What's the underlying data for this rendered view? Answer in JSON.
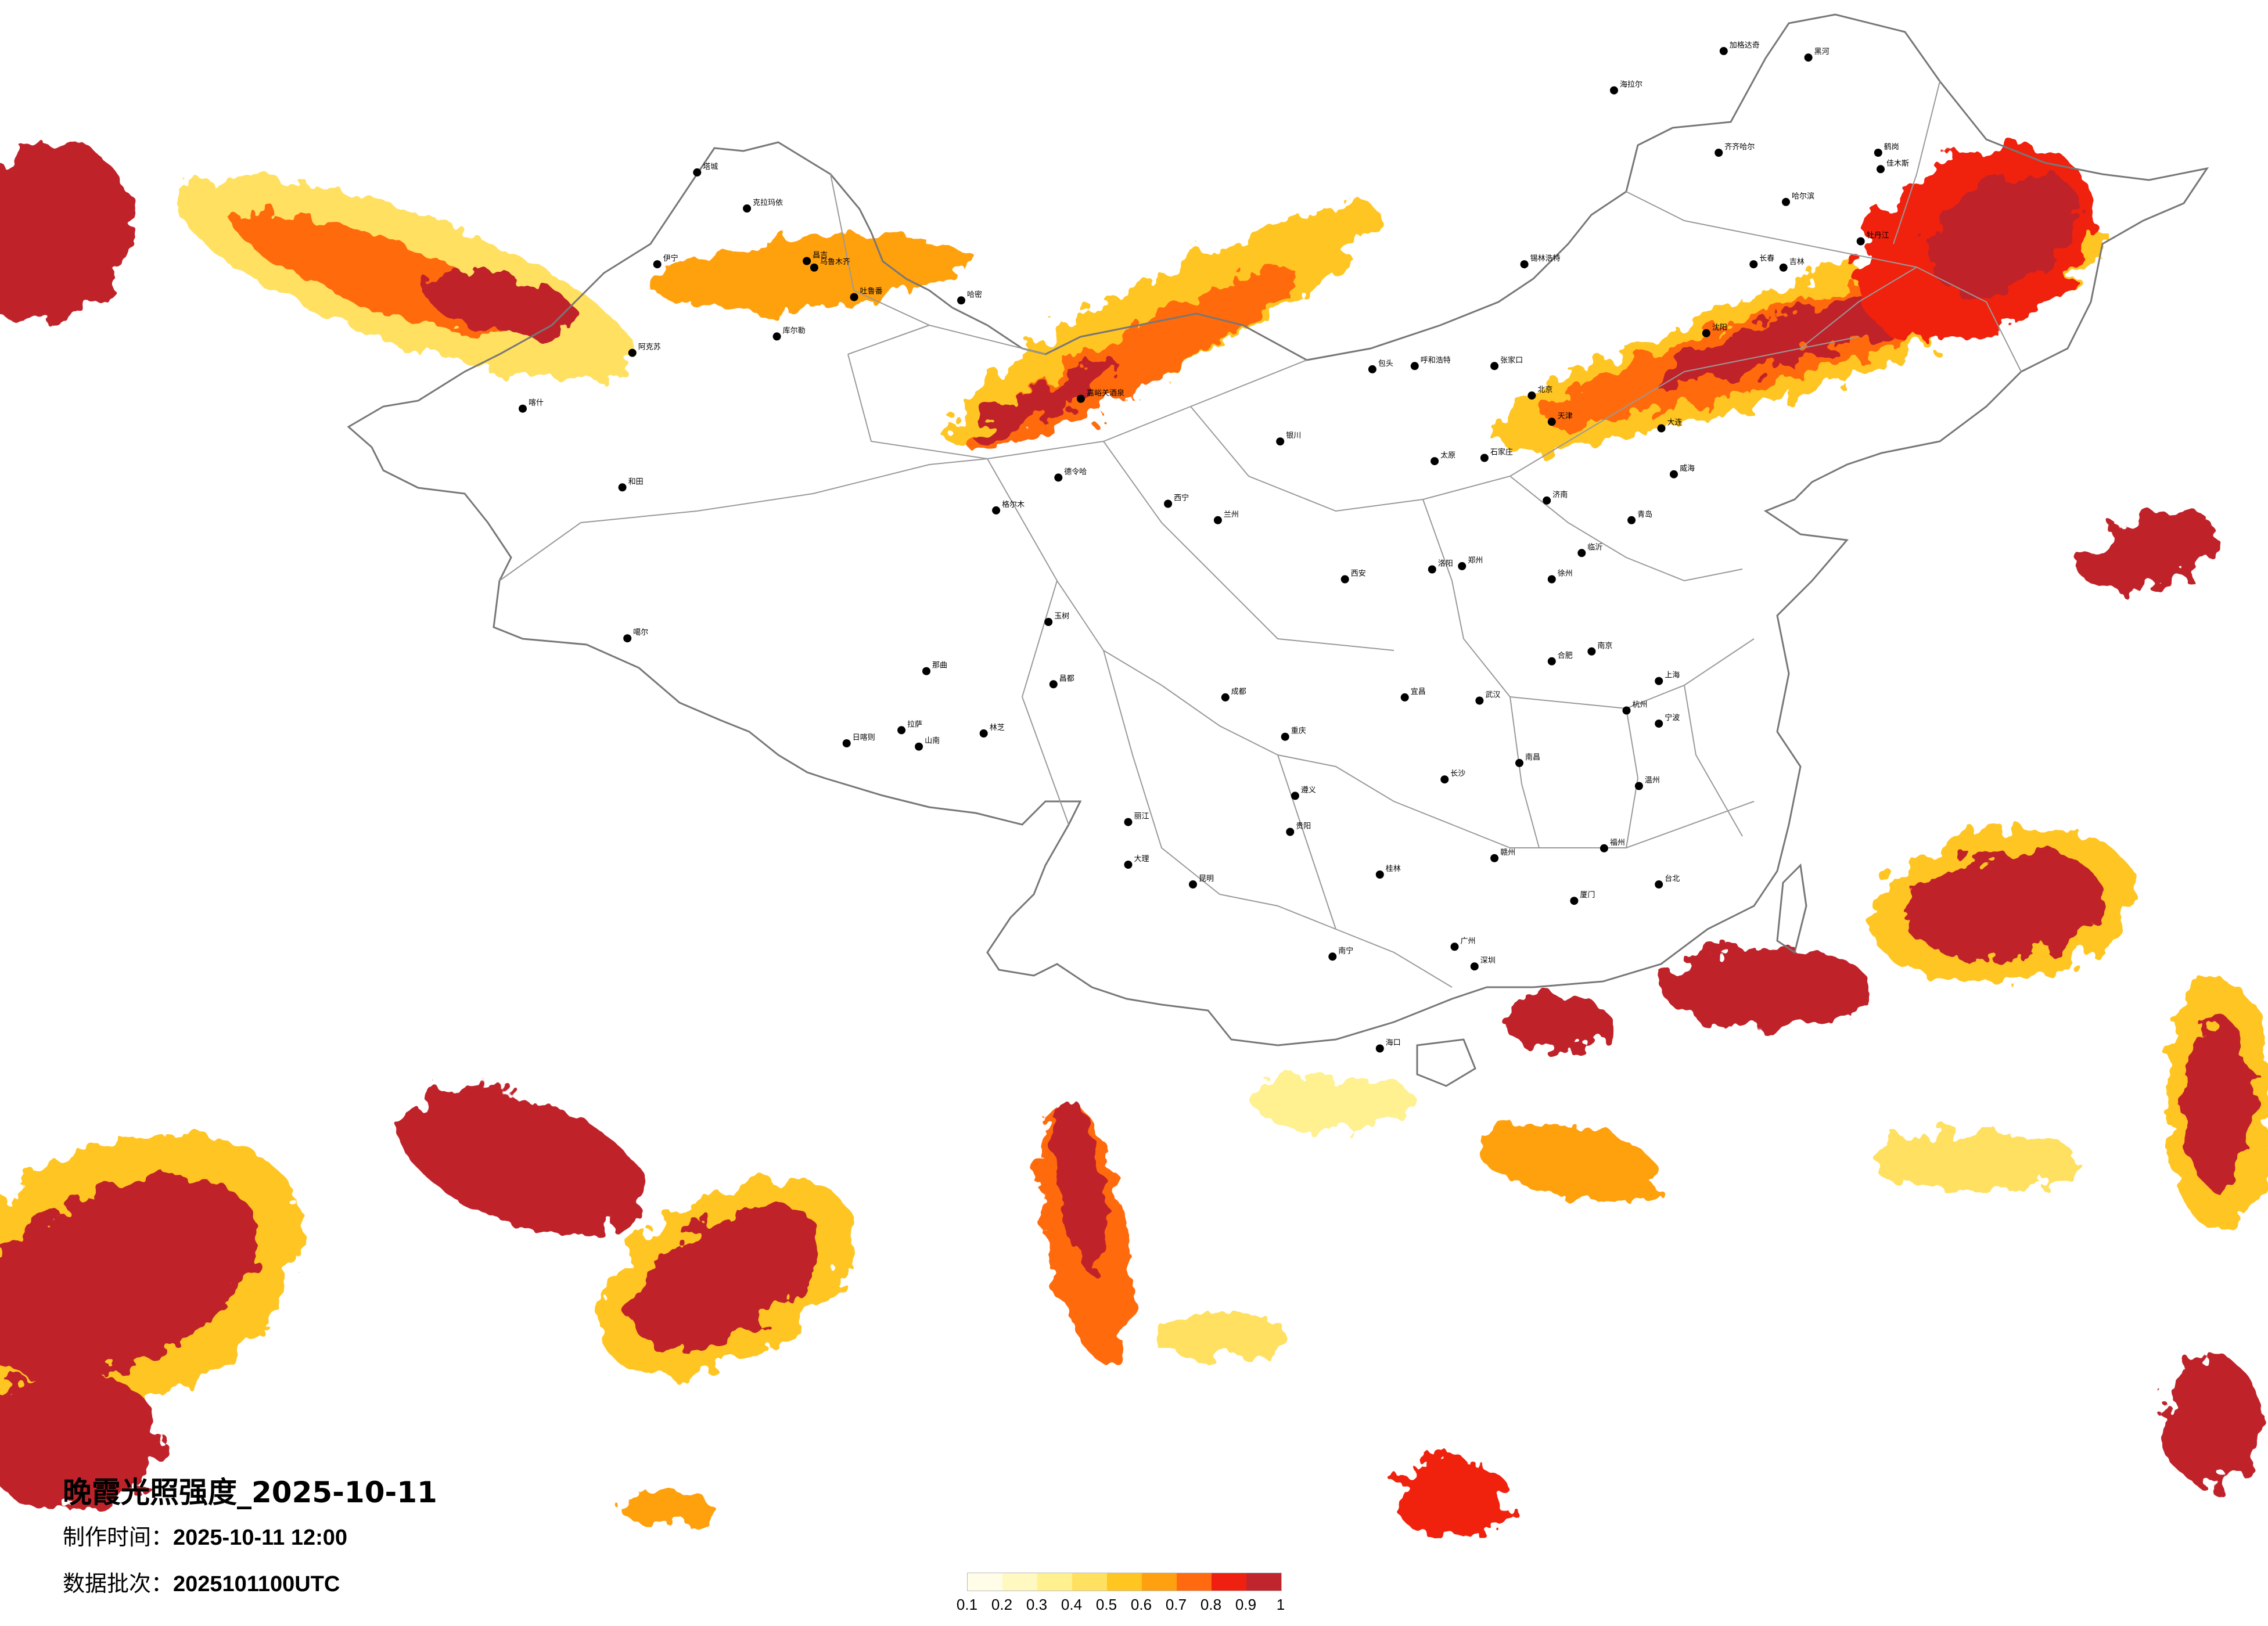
{
  "map": {
    "title": "晚霞光照强度_2025-10-11",
    "produce_time_label": "制作时间：",
    "produce_time": "2025-10-11 12:00",
    "batch_label": "数据批次：",
    "batch": "2025101100UTC"
  },
  "colorbar": {
    "colors": [
      "#fffde8",
      "#fff8c0",
      "#fff090",
      "#ffe060",
      "#ffc520",
      "#ffa010",
      "#ff6a10",
      "#f02010",
      "#c0242c"
    ],
    "ticks": [
      "0.1",
      "0.2",
      "0.3",
      "0.4",
      "0.5",
      "0.6",
      "0.7",
      "0.8",
      "0.9",
      "1"
    ]
  },
  "cities": [
    {
      "name": "克拉玛依",
      "lon": 84.9,
      "lat": 45.6
    },
    {
      "name": "昌吉",
      "lon": 87.3,
      "lat": 44.0
    },
    {
      "name": "乌鲁木齐",
      "lon": 87.6,
      "lat": 43.8
    },
    {
      "name": "吐鲁番",
      "lon": 89.2,
      "lat": 42.9
    },
    {
      "name": "哈密",
      "lon": 93.5,
      "lat": 42.8
    },
    {
      "name": "库尔勒",
      "lon": 86.1,
      "lat": 41.7
    },
    {
      "name": "阿克苏",
      "lon": 80.3,
      "lat": 41.2
    },
    {
      "name": "喀什",
      "lon": 75.9,
      "lat": 39.5
    },
    {
      "name": "和田",
      "lon": 79.9,
      "lat": 37.1
    },
    {
      "name": "伊宁",
      "lon": 81.3,
      "lat": 43.9
    },
    {
      "name": "塔城",
      "lon": 82.9,
      "lat": 46.7
    },
    {
      "name": "嘉峪关酒泉",
      "lon": 98.3,
      "lat": 39.8
    },
    {
      "name": "德令哈",
      "lon": 97.4,
      "lat": 37.4
    },
    {
      "name": "格尔木",
      "lon": 94.9,
      "lat": 36.4
    },
    {
      "name": "噶尔",
      "lon": 80.1,
      "lat": 32.5
    },
    {
      "name": "那曲",
      "lon": 92.1,
      "lat": 31.5
    },
    {
      "name": "日喀则",
      "lon": 88.9,
      "lat": 29.3
    },
    {
      "name": "拉萨",
      "lon": 91.1,
      "lat": 29.7
    },
    {
      "name": "山南",
      "lon": 91.8,
      "lat": 29.2
    },
    {
      "name": "林芝",
      "lon": 94.4,
      "lat": 29.6
    },
    {
      "name": "昌都",
      "lon": 97.2,
      "lat": 31.1
    },
    {
      "name": "玉树",
      "lon": 97.0,
      "lat": 33.0
    },
    {
      "name": "西宁",
      "lon": 101.8,
      "lat": 36.6
    },
    {
      "name": "兰州",
      "lon": 103.8,
      "lat": 36.1
    },
    {
      "name": "银川",
      "lon": 106.3,
      "lat": 38.5
    },
    {
      "name": "呼和浩特",
      "lon": 111.7,
      "lat": 40.8
    },
    {
      "name": "包头",
      "lon": 110.0,
      "lat": 40.7
    },
    {
      "name": "海拉尔",
      "lon": 119.7,
      "lat": 49.2
    },
    {
      "name": "加格达奇",
      "lon": 124.1,
      "lat": 50.4
    },
    {
      "name": "黑河",
      "lon": 127.5,
      "lat": 50.2
    },
    {
      "name": "齐齐哈尔",
      "lon": 123.9,
      "lat": 47.3
    },
    {
      "name": "哈尔滨",
      "lon": 126.6,
      "lat": 45.8
    },
    {
      "name": "鹤岗",
      "lon": 130.3,
      "lat": 47.3
    },
    {
      "name": "佳木斯",
      "lon": 130.4,
      "lat": 46.8
    },
    {
      "name": "牡丹江",
      "lon": 129.6,
      "lat": 44.6
    },
    {
      "name": "长春",
      "lon": 125.3,
      "lat": 43.9
    },
    {
      "name": "吉林",
      "lon": 126.5,
      "lat": 43.8
    },
    {
      "name": "沈阳",
      "lon": 123.4,
      "lat": 41.8
    },
    {
      "name": "大连",
      "lon": 121.6,
      "lat": 38.9
    },
    {
      "name": "锡林浩特",
      "lon": 116.1,
      "lat": 43.9
    },
    {
      "name": "张家口",
      "lon": 114.9,
      "lat": 40.8
    },
    {
      "name": "北京",
      "lon": 116.4,
      "lat": 39.9
    },
    {
      "name": "天津",
      "lon": 117.2,
      "lat": 39.1
    },
    {
      "name": "石家庄",
      "lon": 114.5,
      "lat": 38.0
    },
    {
      "name": "太原",
      "lon": 112.5,
      "lat": 37.9
    },
    {
      "name": "济南",
      "lon": 117.0,
      "lat": 36.7
    },
    {
      "name": "青岛",
      "lon": 120.4,
      "lat": 36.1
    },
    {
      "name": "威海",
      "lon": 122.1,
      "lat": 37.5
    },
    {
      "name": "郑州",
      "lon": 113.6,
      "lat": 34.7
    },
    {
      "name": "西安",
      "lon": 108.9,
      "lat": 34.3
    },
    {
      "name": "南京",
      "lon": 118.8,
      "lat": 32.1
    },
    {
      "name": "上海",
      "lon": 121.5,
      "lat": 31.2
    },
    {
      "name": "杭州",
      "lon": 120.2,
      "lat": 30.3
    },
    {
      "name": "合肥",
      "lon": 117.2,
      "lat": 31.8
    },
    {
      "name": "武汉",
      "lon": 114.3,
      "lat": 30.6
    },
    {
      "name": "长沙",
      "lon": 112.9,
      "lat": 28.2
    },
    {
      "name": "南昌",
      "lon": 115.9,
      "lat": 28.7
    },
    {
      "name": "福州",
      "lon": 119.3,
      "lat": 26.1
    },
    {
      "name": "厦门",
      "lon": 118.1,
      "lat": 24.5
    },
    {
      "name": "广州",
      "lon": 113.3,
      "lat": 23.1
    },
    {
      "name": "深圳",
      "lon": 114.1,
      "lat": 22.5
    },
    {
      "name": "南宁",
      "lon": 108.4,
      "lat": 22.8
    },
    {
      "name": "海口",
      "lon": 110.3,
      "lat": 20.0
    },
    {
      "name": "重庆",
      "lon": 106.5,
      "lat": 29.5
    },
    {
      "name": "成都",
      "lon": 104.1,
      "lat": 30.7
    },
    {
      "name": "贵阳",
      "lon": 106.7,
      "lat": 26.6
    },
    {
      "name": "昆明",
      "lon": 102.8,
      "lat": 25.0
    },
    {
      "name": "大理",
      "lon": 100.2,
      "lat": 25.6
    },
    {
      "name": "丽江",
      "lon": 100.2,
      "lat": 26.9
    },
    {
      "name": "台北",
      "lon": 121.5,
      "lat": 25.0
    },
    {
      "name": "桂林",
      "lon": 110.3,
      "lat": 25.3
    },
    {
      "name": "赣州",
      "lon": 114.9,
      "lat": 25.8
    },
    {
      "name": "遵义",
      "lon": 106.9,
      "lat": 27.7
    },
    {
      "name": "宜昌",
      "lon": 111.3,
      "lat": 30.7
    },
    {
      "name": "洛阳",
      "lon": 112.4,
      "lat": 34.6
    },
    {
      "name": "徐州",
      "lon": 117.2,
      "lat": 34.3
    },
    {
      "name": "临沂",
      "lon": 118.4,
      "lat": 35.1
    },
    {
      "name": "温州",
      "lon": 120.7,
      "lat": 28.0
    },
    {
      "name": "宁波",
      "lon": 121.5,
      "lat": 29.9
    }
  ]
}
